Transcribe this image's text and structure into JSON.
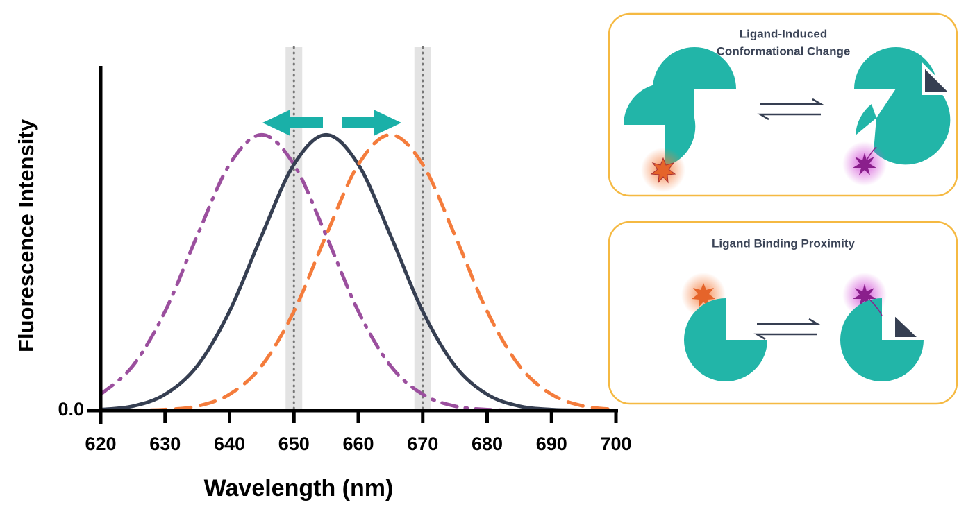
{
  "chart_data": {
    "type": "line",
    "xlabel": "Wavelength (nm)",
    "ylabel": "Fluorescence Intensity",
    "x": [
      620,
      625,
      630,
      635,
      640,
      645,
      650,
      655,
      660,
      665,
      670,
      675,
      680,
      685,
      690,
      695,
      700
    ],
    "series": [
      {
        "color": "#9b4f9e",
        "style": "dashdot",
        "values": [
          0.047,
          0.13,
          0.288,
          0.508,
          0.714,
          0.8,
          0.714,
          0.508,
          0.288,
          0.13,
          0.047,
          0.013,
          0.003,
          0.001,
          0,
          0,
          0
        ]
      },
      {
        "color": "#363f52",
        "style": "solid",
        "values": [
          0.003,
          0.013,
          0.047,
          0.13,
          0.288,
          0.508,
          0.714,
          0.8,
          0.714,
          0.508,
          0.288,
          0.13,
          0.047,
          0.013,
          0.003,
          0.001,
          0
        ]
      },
      {
        "color": "#f47c3c",
        "style": "dashed",
        "values": [
          0,
          0.001,
          0.003,
          0.013,
          0.047,
          0.13,
          0.288,
          0.508,
          0.714,
          0.8,
          0.714,
          0.508,
          0.288,
          0.13,
          0.047,
          0.013,
          0.003
        ]
      }
    ],
    "xlim": [
      620,
      700
    ],
    "xticks": [
      620,
      630,
      640,
      650,
      660,
      670,
      680,
      690,
      700
    ],
    "ylim": [
      0,
      1
    ],
    "yticks": [
      {
        "value": 0,
        "label": "0.0"
      }
    ],
    "highlight_x": [
      650,
      670
    ]
  },
  "panels": [
    {
      "title": [
        "Ligand-Induced",
        "Conformational Change"
      ]
    },
    {
      "title": [
        "Ligand Binding Proximity"
      ]
    }
  ]
}
